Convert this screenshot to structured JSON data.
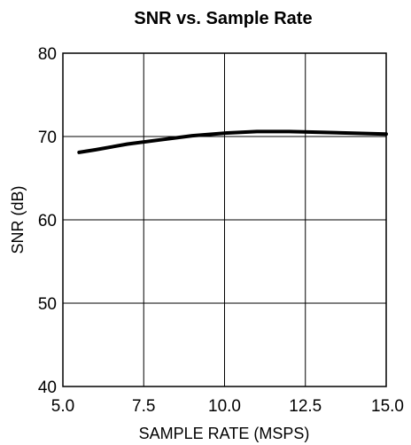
{
  "chart_data": {
    "type": "line",
    "title": "SNR vs. Sample Rate",
    "xlabel": "SAMPLE RATE (MSPS)",
    "ylabel": "SNR (dB)",
    "xlim": [
      5.0,
      15.0
    ],
    "ylim": [
      40,
      80
    ],
    "x_ticks": [
      "5.0",
      "7.5",
      "10.0",
      "12.5",
      "15.0"
    ],
    "y_ticks": [
      "40",
      "50",
      "60",
      "70",
      "80"
    ],
    "grid": true,
    "series": [
      {
        "x": [
          5.5,
          6.0,
          7.0,
          8.0,
          9.0,
          10.0,
          11.0,
          12.0,
          13.0,
          14.0,
          15.0
        ],
        "y": [
          68.1,
          68.4,
          69.1,
          69.6,
          70.1,
          70.4,
          70.6,
          70.6,
          70.5,
          70.4,
          70.3
        ]
      }
    ]
  }
}
